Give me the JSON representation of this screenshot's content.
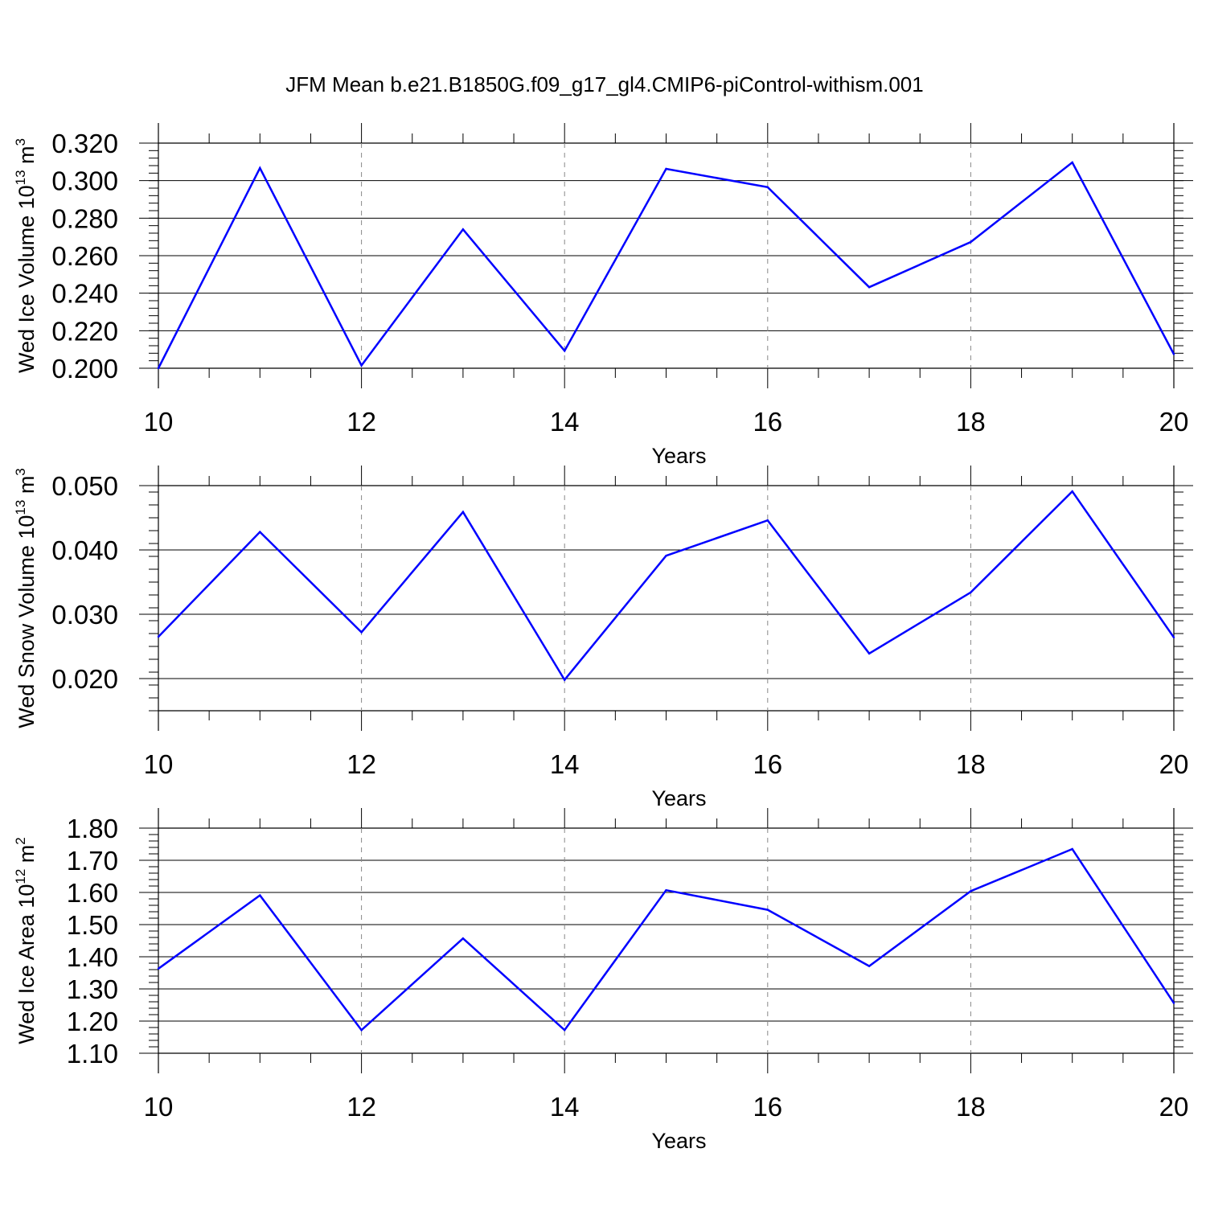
{
  "figure": {
    "title": "JFM Mean b.e21.B1850G.f09_g17_gl4.CMIP6-piControl-withism.001"
  },
  "colors": {
    "series": "#0000ff",
    "axes": "#000000",
    "grid": "#888888"
  },
  "chart_data": [
    {
      "type": "line",
      "ylabel": "Wed Ice Volume 10",
      "ylabel_exp": "13",
      "ylabel_unit": " m",
      "ylabel_unit_exp": "3",
      "xlabel": "Years",
      "xlim": [
        10,
        20
      ],
      "ylim": [
        0.2,
        0.32
      ],
      "x_ticks": [
        "10",
        "12",
        "14",
        "16",
        "18",
        "20"
      ],
      "y_ticks": [
        "0.200",
        "0.220",
        "0.240",
        "0.260",
        "0.280",
        "0.300",
        "0.320"
      ],
      "grid": "vertical dashed at major x ticks",
      "x": [
        10,
        11,
        12,
        13,
        14,
        15,
        16,
        17,
        18,
        19,
        20
      ],
      "values": [
        0.2,
        0.3067,
        0.2015,
        0.274,
        0.2093,
        0.3063,
        0.2965,
        0.2432,
        0.2673,
        0.3097,
        0.2075
      ]
    },
    {
      "type": "line",
      "ylabel": "Wed Snow Volume 10",
      "ylabel_exp": "13",
      "ylabel_unit": " m",
      "ylabel_unit_exp": "3",
      "xlabel": "Years",
      "xlim": [
        10,
        20
      ],
      "ylim": [
        0.015,
        0.05
      ],
      "x_ticks": [
        "10",
        "12",
        "14",
        "16",
        "18",
        "20"
      ],
      "y_ticks": [
        "0.020",
        "0.030",
        "0.040",
        "0.050"
      ],
      "grid": "vertical dashed at major x ticks",
      "x": [
        10,
        11,
        12,
        13,
        14,
        15,
        16,
        17,
        18,
        19,
        20
      ],
      "values": [
        0.0265,
        0.0428,
        0.0272,
        0.0459,
        0.0198,
        0.0391,
        0.0446,
        0.0239,
        0.0334,
        0.0491,
        0.0264
      ]
    },
    {
      "type": "line",
      "ylabel": "Wed Ice Area 10",
      "ylabel_exp": "12",
      "ylabel_unit": " m",
      "ylabel_unit_exp": "2",
      "xlabel": "Years",
      "xlim": [
        10,
        20
      ],
      "ylim": [
        1.1,
        1.8
      ],
      "x_ticks": [
        "10",
        "12",
        "14",
        "16",
        "18",
        "20"
      ],
      "y_ticks": [
        "1.10",
        "1.20",
        "1.30",
        "1.40",
        "1.50",
        "1.60",
        "1.70",
        "1.80"
      ],
      "grid": "vertical dashed at major x ticks",
      "x": [
        10,
        11,
        12,
        13,
        14,
        15,
        16,
        17,
        18,
        19,
        20
      ],
      "values": [
        1.363,
        1.591,
        1.172,
        1.457,
        1.172,
        1.607,
        1.546,
        1.371,
        1.604,
        1.735,
        1.256
      ]
    }
  ]
}
